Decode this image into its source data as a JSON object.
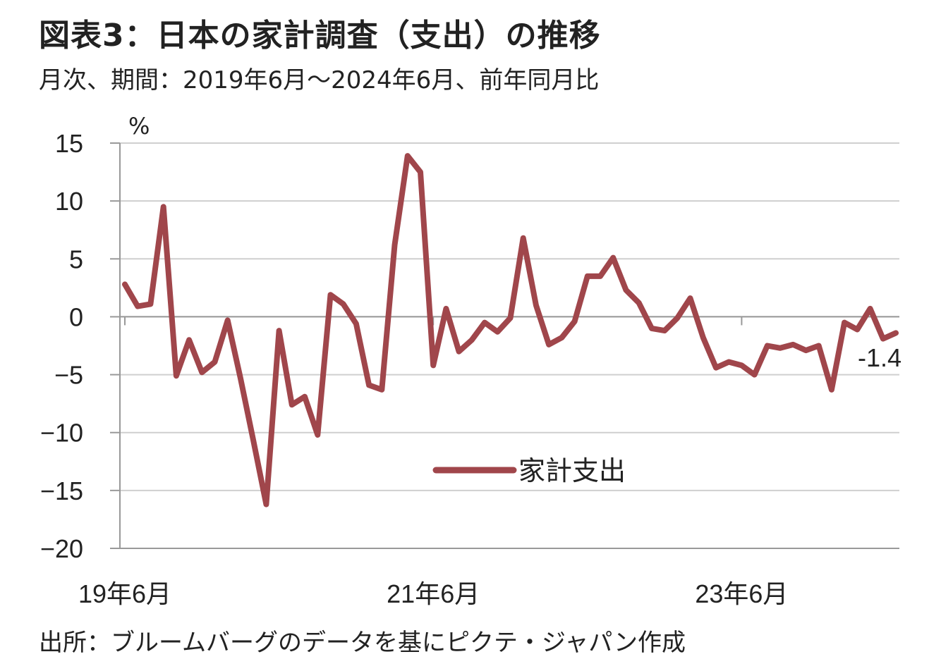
{
  "title": "図表3：日本の家計調査（支出）の推移",
  "subtitle": "月次、期間：2019年6月～2024年6月、前年同月比",
  "source": "出所：ブルームバーグのデータを基にピクテ・ジャパン作成",
  "chart_data": {
    "type": "line",
    "title": "図表3：日本の家計調査（支出）の推移",
    "subtitle": "月次、期間：2019年6月～2024年6月、前年同月比",
    "ylabel": "%",
    "ylim": [
      -20,
      15
    ],
    "yticks": [
      15,
      10,
      5,
      0,
      -5,
      -10,
      -15,
      -20
    ],
    "xtick_labels": [
      {
        "label": "19年6月",
        "index": 0
      },
      {
        "label": "21年6月",
        "index": 24
      },
      {
        "label": "23年6月",
        "index": 48
      }
    ],
    "grid": true,
    "legend": {
      "position": "lower-center",
      "entries": [
        "家計支出"
      ]
    },
    "end_label": "-1.4",
    "series": [
      {
        "name": "家計支出",
        "color": "#a0464b",
        "values": [
          2.8,
          0.9,
          1.1,
          9.5,
          -5.1,
          -2.0,
          -4.8,
          -3.9,
          -0.3,
          -5.3,
          -10.7,
          -16.2,
          -1.2,
          -7.6,
          -6.9,
          -10.2,
          1.9,
          1.1,
          -0.6,
          -5.9,
          -6.3,
          6.2,
          13.9,
          12.5,
          -4.2,
          0.7,
          -3.0,
          -2.0,
          -0.5,
          -1.3,
          -0.1,
          6.8,
          1.0,
          -2.4,
          -1.8,
          -0.4,
          3.5,
          3.5,
          5.1,
          2.3,
          1.2,
          -1.0,
          -1.2,
          -0.1,
          1.6,
          -1.8,
          -4.4,
          -3.9,
          -4.2,
          -5.0,
          -2.5,
          -2.7,
          -2.4,
          -2.9,
          -2.5,
          -6.3,
          -0.5,
          -1.1,
          0.7,
          -1.9,
          -1.4
        ]
      }
    ]
  }
}
